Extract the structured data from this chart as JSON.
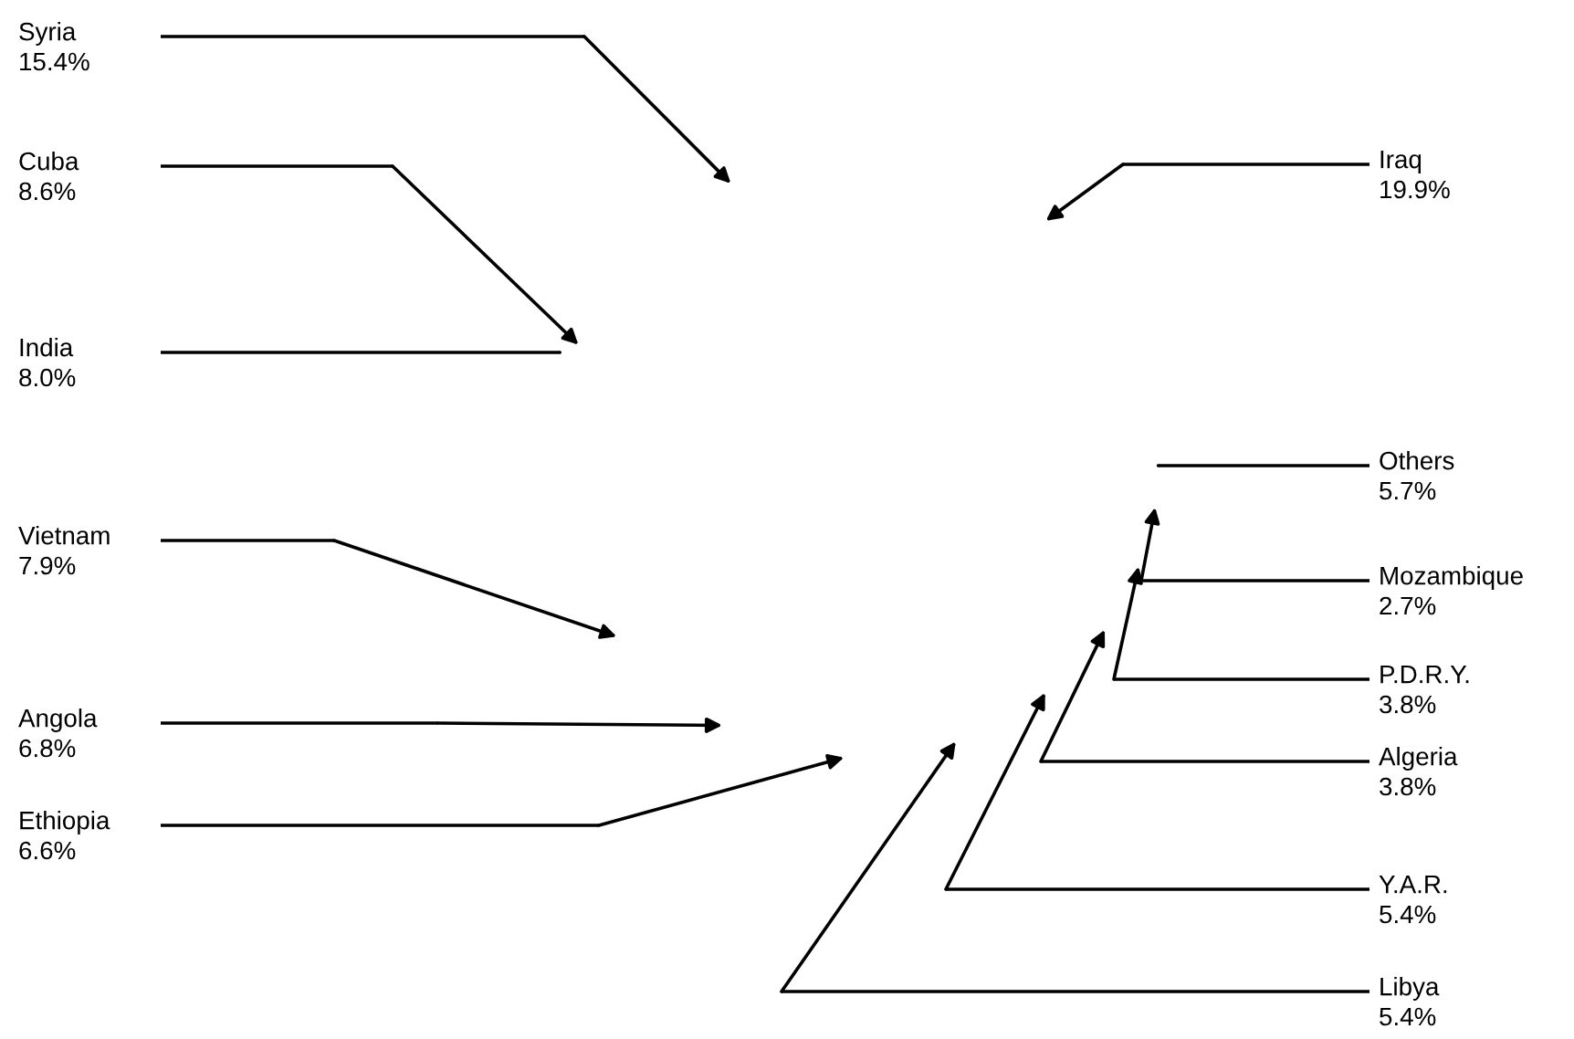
{
  "chart_data": {
    "type": "other",
    "categories": [
      "Iraq",
      "Others",
      "Mozambique",
      "P.D.R.Y.",
      "Algeria",
      "Y.A.R.",
      "Libya",
      "Ethiopia",
      "Angola",
      "Vietnam",
      "India",
      "Cuba",
      "Syria"
    ],
    "values": [
      19.9,
      5.7,
      2.7,
      3.8,
      3.8,
      5.4,
      5.4,
      6.6,
      6.8,
      7.9,
      8.0,
      8.6,
      15.4
    ],
    "value_labels": [
      "19.9%",
      "5.7%",
      "2.7%",
      "3.8%",
      "3.8%",
      "5.4%",
      "5.4%",
      "6.6%",
      "6.8%",
      "7.9%",
      "8.0%",
      "8.6%",
      "15.4%"
    ]
  }
}
